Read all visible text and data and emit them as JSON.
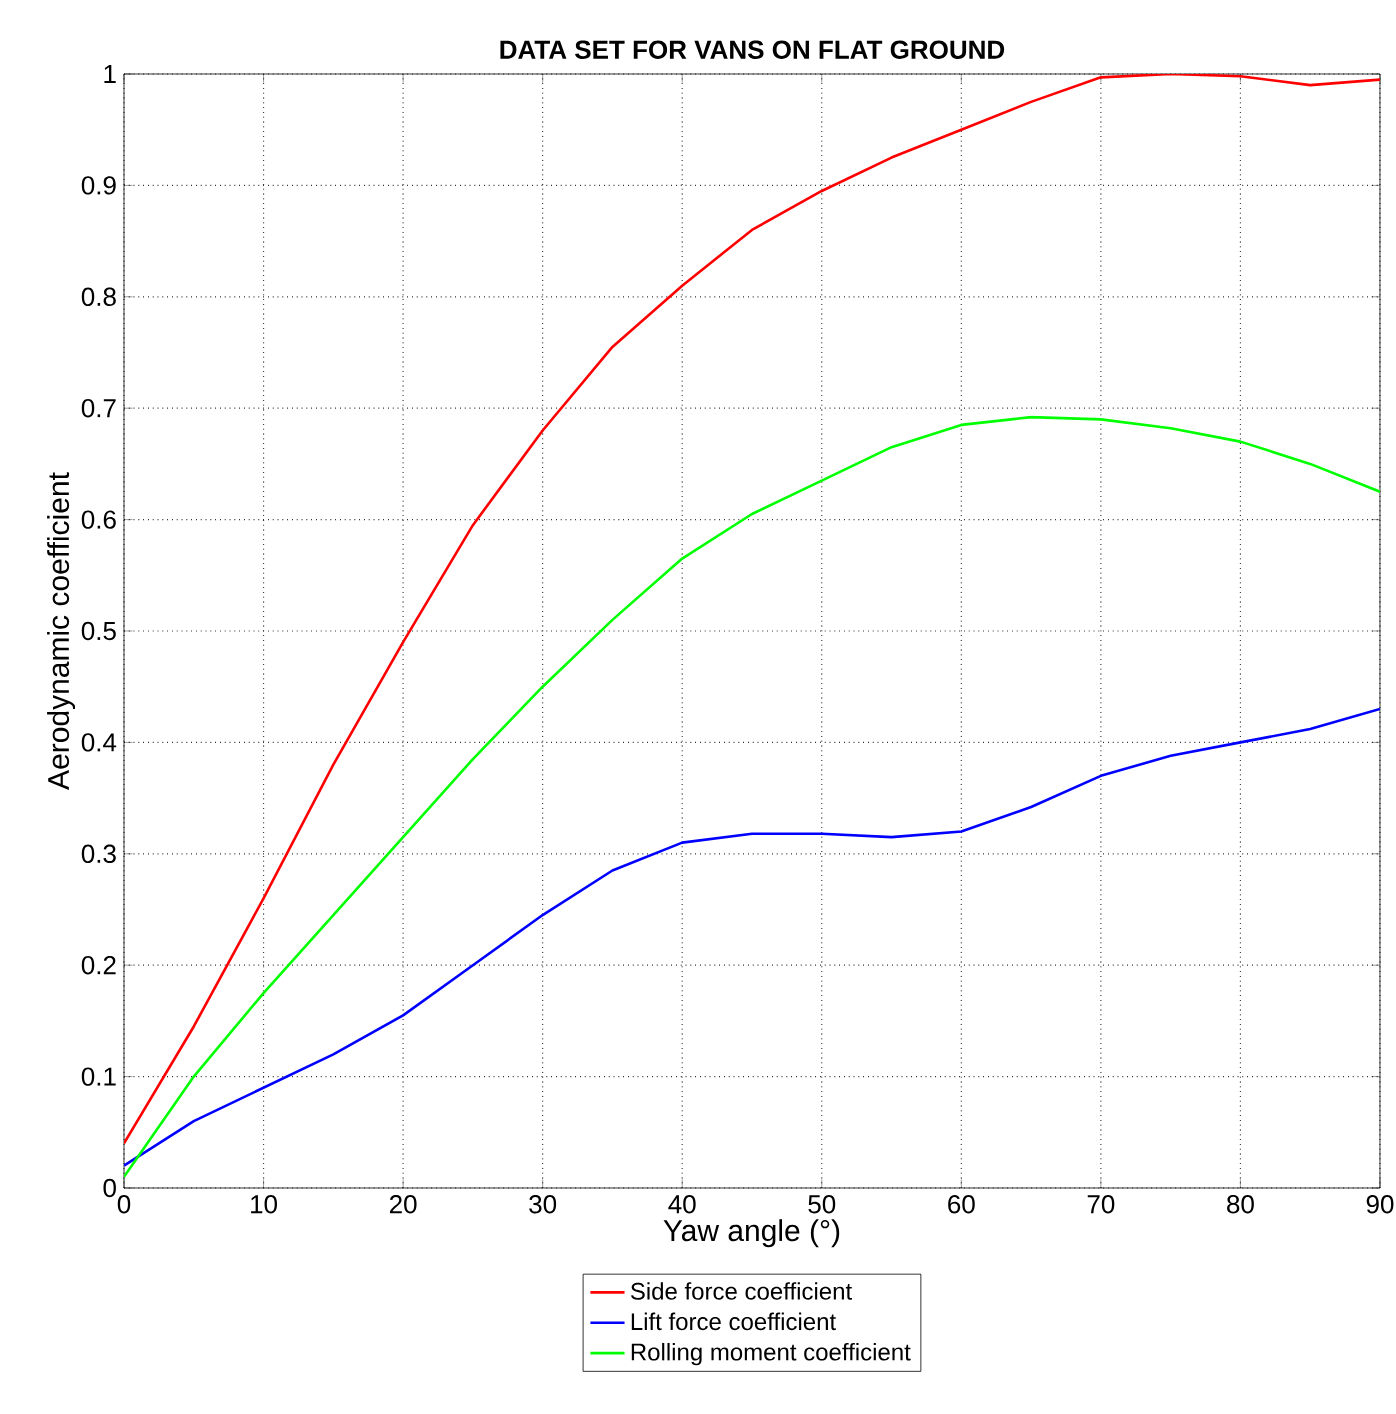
{
  "chart_data": {
    "type": "line",
    "title": "DATA SET FOR VANS ON FLAT GROUND",
    "xlabel": "Yaw angle (°)",
    "ylabel": "Aerodynamic coefficient",
    "x": [
      0,
      5,
      10,
      15,
      20,
      25,
      30,
      35,
      40,
      45,
      50,
      55,
      60,
      65,
      70,
      75,
      80,
      85,
      90
    ],
    "series": [
      {
        "name": "Side force coefficient",
        "color": "#ff0000",
        "values": [
          0.04,
          0.145,
          0.26,
          0.38,
          0.49,
          0.595,
          0.68,
          0.755,
          0.81,
          0.86,
          0.895,
          0.925,
          0.95,
          0.975,
          0.997,
          1.0,
          0.998,
          0.99,
          0.995
        ]
      },
      {
        "name": "Lift force coefficient",
        "color": "#0000ff",
        "values": [
          0.02,
          0.06,
          0.09,
          0.12,
          0.155,
          0.2,
          0.245,
          0.285,
          0.31,
          0.318,
          0.318,
          0.315,
          0.32,
          0.342,
          0.37,
          0.388,
          0.4,
          0.412,
          0.43
        ]
      },
      {
        "name": "Rolling moment coefficient",
        "color": "#00ff00",
        "values": [
          0.01,
          0.1,
          0.175,
          0.245,
          0.315,
          0.385,
          0.45,
          0.51,
          0.565,
          0.605,
          0.635,
          0.665,
          0.685,
          0.692,
          0.69,
          0.682,
          0.67,
          0.65,
          0.625
        ]
      }
    ],
    "xlim": [
      0,
      90
    ],
    "ylim": [
      0,
      1
    ],
    "xticks": [
      0,
      10,
      20,
      30,
      40,
      50,
      60,
      70,
      80,
      90
    ],
    "yticks": [
      0,
      0.1,
      0.2,
      0.3,
      0.4,
      0.5,
      0.6,
      0.7,
      0.8,
      0.9,
      1
    ],
    "grid": true,
    "legend": "bottom",
    "marker": "none",
    "line_style": "solid"
  }
}
